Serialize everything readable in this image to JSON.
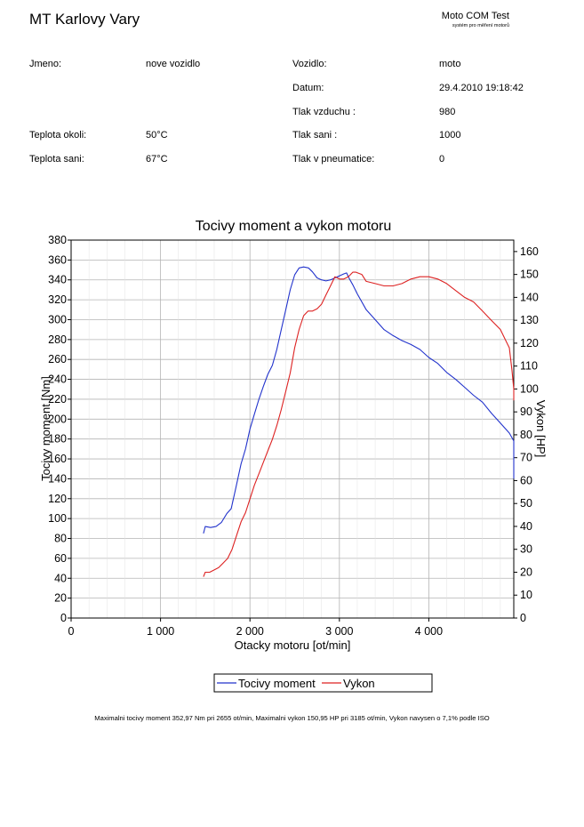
{
  "header": {
    "shop_name": "MT Karlovy Vary",
    "brand": "Moto COM Test",
    "brand_subtitle": "systém pro měření motorů"
  },
  "info": {
    "left": [
      {
        "label": "Jmeno:",
        "value": "nove vozidlo"
      },
      {
        "label": "Teplota okoli:",
        "value": "50°C"
      },
      {
        "label": "Teplota sani:",
        "value": "67°C"
      }
    ],
    "right": [
      {
        "label": "Vozidlo:",
        "value": "moto"
      },
      {
        "label": "Datum:",
        "value": "29.4.2010 19:18:42"
      },
      {
        "label": "Tlak vzduchu :",
        "value": "980"
      },
      {
        "label": "Tlak sani :",
        "value": "1000"
      },
      {
        "label": "Tlak v pneumatice:",
        "value": "0"
      }
    ]
  },
  "footer": {
    "summary": "Maximalni tocivy moment 352,97 Nm pri 2655 ot/min,  Maximalni vykon 150,95 HP pri 3185 ot/min,  Vykon navysen o 7,1% podle ISO"
  },
  "colors": {
    "torque": "#2233cc",
    "power": "#dd2222",
    "grid": "#b4b4b4"
  },
  "chart_data": {
    "type": "line",
    "title": "Tocivy moment a vykon motoru",
    "xlabel": "Otacky motoru [ot/min]",
    "ylabel": "Tocivy moment [Nm]",
    "y2label": "Vykon [HP]",
    "xlim": [
      0,
      4950
    ],
    "ylim": [
      0,
      380
    ],
    "y2lim": [
      0,
      165
    ],
    "xticks": [
      0,
      1000,
      2000,
      3000,
      4000
    ],
    "xtick_labels": [
      "0",
      "1 000",
      "2 000",
      "3 000",
      "4 000"
    ],
    "yticks": [
      0,
      20,
      40,
      60,
      80,
      100,
      120,
      140,
      160,
      180,
      200,
      220,
      240,
      260,
      280,
      300,
      320,
      340,
      360,
      380
    ],
    "y2ticks": [
      0,
      10,
      20,
      30,
      40,
      50,
      60,
      70,
      80,
      90,
      100,
      110,
      120,
      130,
      140,
      150,
      160
    ],
    "grid": true,
    "legend_position": "bottom-center",
    "series": [
      {
        "name": "Tocivy moment",
        "axis": "left",
        "x": [
          1480,
          1500,
          1560,
          1620,
          1680,
          1740,
          1790,
          1840,
          1900,
          1950,
          2000,
          2050,
          2100,
          2150,
          2200,
          2250,
          2300,
          2350,
          2400,
          2450,
          2500,
          2550,
          2600,
          2655,
          2700,
          2750,
          2800,
          2850,
          2900,
          2950,
          3000,
          3050,
          3080,
          3100,
          3150,
          3200,
          3300,
          3400,
          3500,
          3600,
          3700,
          3800,
          3900,
          4000,
          4100,
          4200,
          4300,
          4400,
          4500,
          4600,
          4700,
          4800,
          4900,
          4950,
          4950
        ],
        "y": [
          85,
          92,
          91,
          92,
          96,
          105,
          110,
          130,
          155,
          170,
          190,
          205,
          220,
          233,
          245,
          254,
          270,
          290,
          310,
          330,
          345,
          352,
          353,
          352,
          348,
          342,
          340,
          339,
          340,
          342,
          344,
          346,
          347,
          343,
          335,
          326,
          310,
          300,
          290,
          284,
          279,
          275,
          270,
          262,
          256,
          247,
          240,
          232,
          224,
          217,
          206,
          196,
          186,
          178,
          140
        ]
      },
      {
        "name": "Vykon",
        "axis": "right",
        "x": [
          1480,
          1500,
          1550,
          1600,
          1650,
          1700,
          1750,
          1800,
          1850,
          1900,
          1950,
          2000,
          2050,
          2100,
          2150,
          2200,
          2250,
          2300,
          2350,
          2400,
          2450,
          2500,
          2550,
          2600,
          2650,
          2700,
          2750,
          2800,
          2850,
          2900,
          2950,
          3000,
          3050,
          3100,
          3150,
          3185,
          3250,
          3300,
          3400,
          3500,
          3600,
          3700,
          3800,
          3900,
          4000,
          4100,
          4200,
          4300,
          4400,
          4500,
          4600,
          4700,
          4800,
          4850,
          4900,
          4930,
          4950,
          4950
        ],
        "y": [
          18,
          20,
          20,
          21,
          22,
          24,
          26,
          30,
          36,
          42,
          46,
          52,
          58,
          63,
          68,
          73,
          78,
          84,
          91,
          99,
          107,
          118,
          126,
          132,
          134,
          134,
          135,
          137,
          141,
          145,
          149,
          148,
          148,
          149,
          151,
          151,
          150,
          147,
          146,
          145,
          145,
          146,
          148,
          149,
          149,
          148,
          146,
          143,
          140,
          138,
          134,
          130,
          126,
          122,
          118,
          108,
          100,
          95
        ]
      }
    ]
  }
}
